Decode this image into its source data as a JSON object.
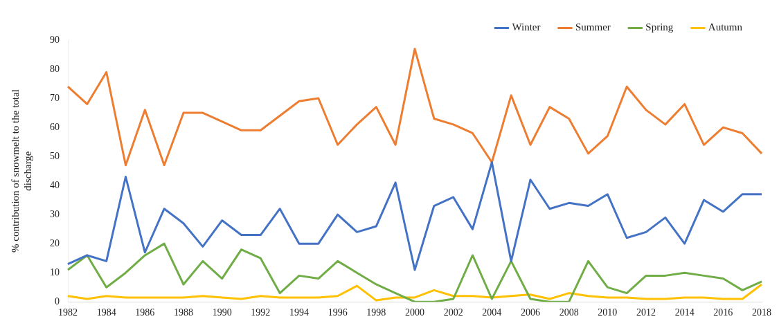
{
  "chart_data": {
    "type": "line",
    "ylabel": "% contribution of snowmelt to the total discharge",
    "categories": [
      "1982",
      null,
      "1984",
      null,
      "1986",
      null,
      "1988",
      null,
      "1990",
      null,
      "1992",
      null,
      "1994",
      null,
      "1996",
      null,
      "1998",
      null,
      "2000",
      null,
      "2002",
      null,
      "2004",
      null,
      "2006",
      null,
      "2008",
      null,
      "2010",
      null,
      "2012",
      null,
      "2014",
      null,
      "2016",
      null,
      "2018"
    ],
    "series": [
      {
        "name": "Winter",
        "color": "#4472c4",
        "values": [
          13,
          16,
          14,
          43,
          17,
          32,
          27,
          19,
          28,
          23,
          23,
          32,
          20,
          20,
          30,
          24,
          26,
          41,
          11,
          33,
          36,
          25,
          48,
          14,
          42,
          32,
          34,
          33,
          37,
          22,
          24,
          29,
          20,
          35,
          31,
          37,
          37
        ]
      },
      {
        "name": "Summer",
        "color": "#ed7d31",
        "values": [
          74,
          68,
          79,
          47,
          66,
          47,
          65,
          65,
          62,
          59,
          59,
          64,
          69,
          70,
          54,
          61,
          67,
          54,
          87,
          63,
          61,
          58,
          48,
          71,
          54,
          67,
          63,
          51,
          57,
          74,
          66,
          61,
          68,
          54,
          60,
          58,
          51
        ]
      },
      {
        "name": "Spring",
        "color": "#70ad47",
        "values": [
          11,
          16,
          5,
          10,
          16,
          20,
          6,
          14,
          8,
          18,
          15,
          3,
          9,
          8,
          14,
          10,
          6,
          3,
          0,
          0,
          1,
          16,
          1,
          14,
          1,
          0,
          0,
          14,
          5,
          3,
          9,
          9,
          10,
          9,
          8,
          4,
          7
        ]
      },
      {
        "name": "Autumn",
        "color": "#ffc000",
        "values": [
          2,
          1,
          2,
          1.5,
          1.5,
          1.5,
          1.5,
          2,
          1.5,
          1,
          2,
          1.5,
          1.5,
          1.5,
          2,
          5.5,
          0.5,
          1.5,
          1.5,
          4,
          2,
          2,
          1.5,
          2,
          2.5,
          1,
          3,
          2,
          1.5,
          1.5,
          1,
          1,
          1.5,
          1.5,
          1,
          1,
          6
        ]
      }
    ],
    "ylim": [
      0,
      90
    ],
    "yticks": [
      0,
      10,
      20,
      30,
      40,
      50,
      60,
      70,
      80,
      90
    ],
    "grid": false,
    "legend": "top right",
    "marker": "none",
    "line_style": "solid"
  }
}
